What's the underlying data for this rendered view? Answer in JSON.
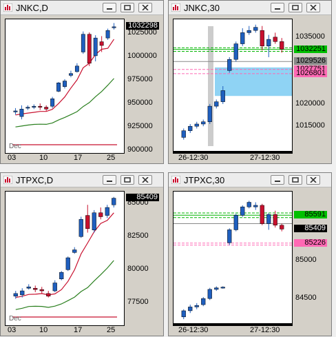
{
  "windows": [
    {
      "title": "JNKC,D",
      "y_ticks": [
        "1025000",
        "1000000",
        "975000",
        "950000",
        "925000",
        "900000"
      ],
      "x_ticks": [
        "03",
        "10",
        "17",
        "25"
      ],
      "x_sublabel": "Dec",
      "price_tags": [
        "1032298"
      ],
      "chart_data": {
        "type": "candlestick",
        "symbol": "JNKC",
        "timeframe": "D",
        "ylim": [
          897000,
          1040000
        ],
        "candles": [
          {
            "o": 941000,
            "h": 945000,
            "l": 938000,
            "c": 942000
          },
          {
            "o": 936000,
            "h": 948000,
            "l": 933000,
            "c": 944000
          },
          {
            "o": 945000,
            "h": 948000,
            "l": 943000,
            "c": 946000
          },
          {
            "o": 946000,
            "h": 949000,
            "l": 944000,
            "c": 947000
          },
          {
            "o": 947000,
            "h": 950000,
            "l": 943000,
            "c": 946000
          },
          {
            "o": 946000,
            "h": 948000,
            "l": 942000,
            "c": 944000
          },
          {
            "o": 947000,
            "h": 957000,
            "l": 945000,
            "c": 955000
          },
          {
            "o": 963000,
            "h": 973000,
            "l": 962000,
            "c": 972000
          },
          {
            "o": 968000,
            "h": 976000,
            "l": 966000,
            "c": 974000
          },
          {
            "o": 980000,
            "h": 985000,
            "l": 978000,
            "c": 982000
          },
          {
            "o": 984000,
            "h": 993000,
            "l": 983000,
            "c": 990000
          },
          {
            "o": 1005000,
            "h": 1027000,
            "l": 1003000,
            "c": 1024000
          },
          {
            "o": 1024000,
            "h": 1026000,
            "l": 990000,
            "c": 993000
          },
          {
            "o": 1001000,
            "h": 1023000,
            "l": 995000,
            "c": 1020000
          },
          {
            "o": 1016000,
            "h": 1022000,
            "l": 1005000,
            "c": 1012000
          },
          {
            "o": 1020000,
            "h": 1030000,
            "l": 1018000,
            "c": 1028000
          },
          {
            "o": 1031000,
            "h": 1036000,
            "l": 1029000,
            "c": 1032000
          }
        ]
      }
    },
    {
      "title": "JNKC,30",
      "y_ticks": [
        "1035000",
        "1020000",
        "1015000"
      ],
      "x_ticks": [
        "26-12:30",
        "27-12:30"
      ],
      "price_tags": [
        "1032251",
        "1029526",
        "1027751",
        "1026801"
      ],
      "chart_data": {
        "type": "candlestick",
        "symbol": "JNKC",
        "timeframe": "30",
        "ylim": [
          1009000,
          1039000
        ],
        "candles": [
          {
            "o": 1012500,
            "h": 1014500,
            "l": 1012000,
            "c": 1014000
          },
          {
            "o": 1014000,
            "h": 1015500,
            "l": 1013500,
            "c": 1015000
          },
          {
            "o": 1015000,
            "h": 1016000,
            "l": 1014500,
            "c": 1015500
          },
          {
            "o": 1015500,
            "h": 1016500,
            "l": 1015000,
            "c": 1016000
          },
          {
            "o": 1016000,
            "h": 1020000,
            "l": 1015500,
            "c": 1019500
          },
          {
            "o": 1019500,
            "h": 1021000,
            "l": 1019000,
            "c": 1020500
          },
          {
            "o": 1020500,
            "h": 1024000,
            "l": 1020000,
            "c": 1023000
          },
          {
            "o": 1027500,
            "h": 1030500,
            "l": 1027000,
            "c": 1030000
          },
          {
            "o": 1030000,
            "h": 1034000,
            "l": 1029500,
            "c": 1033500
          },
          {
            "o": 1033500,
            "h": 1037000,
            "l": 1033000,
            "c": 1036000
          },
          {
            "o": 1036000,
            "h": 1037500,
            "l": 1035500,
            "c": 1036500
          },
          {
            "o": 1036500,
            "h": 1037800,
            "l": 1036000,
            "c": 1037200
          },
          {
            "o": 1036500,
            "h": 1037500,
            "l": 1032000,
            "c": 1033000
          },
          {
            "o": 1033000,
            "h": 1035500,
            "l": 1030500,
            "c": 1034500
          },
          {
            "o": 1035000,
            "h": 1036000,
            "l": 1033500,
            "c": 1034000
          },
          {
            "o": 1034000,
            "h": 1034800,
            "l": 1031500,
            "c": 1032300
          }
        ]
      }
    },
    {
      "title": "JTPXC,D",
      "y_ticks": [
        "85000",
        "82500",
        "80000",
        "77500"
      ],
      "x_ticks": [
        "03",
        "10",
        "17",
        "25"
      ],
      "x_sublabel": "Dec",
      "price_tags": [
        "85409"
      ],
      "chart_data": {
        "type": "candlestick",
        "symbol": "JTPXC",
        "timeframe": "D",
        "ylim": [
          75800,
          85900
        ],
        "candles": [
          {
            "o": 78000,
            "h": 78400,
            "l": 77800,
            "c": 78200
          },
          {
            "o": 78100,
            "h": 78600,
            "l": 77900,
            "c": 78400
          },
          {
            "o": 78600,
            "h": 78900,
            "l": 78500,
            "c": 78700
          },
          {
            "o": 78600,
            "h": 78800,
            "l": 78300,
            "c": 78500
          },
          {
            "o": 78500,
            "h": 78700,
            "l": 78200,
            "c": 78400
          },
          {
            "o": 78200,
            "h": 78400,
            "l": 77900,
            "c": 78000
          },
          {
            "o": 78400,
            "h": 79200,
            "l": 78300,
            "c": 79000
          },
          {
            "o": 79300,
            "h": 79900,
            "l": 79200,
            "c": 79800
          },
          {
            "o": 80000,
            "h": 81000,
            "l": 79900,
            "c": 80900
          },
          {
            "o": 81300,
            "h": 81700,
            "l": 81200,
            "c": 81500
          },
          {
            "o": 82500,
            "h": 84000,
            "l": 82400,
            "c": 83800
          },
          {
            "o": 84100,
            "h": 84900,
            "l": 82800,
            "c": 83100
          },
          {
            "o": 83000,
            "h": 84500,
            "l": 82800,
            "c": 84300
          },
          {
            "o": 84300,
            "h": 84700,
            "l": 83800,
            "c": 84000
          },
          {
            "o": 84100,
            "h": 84900,
            "l": 83900,
            "c": 84700
          },
          {
            "o": 84900,
            "h": 85500,
            "l": 84700,
            "c": 85400
          }
        ]
      }
    },
    {
      "title": "JTPXC,30",
      "y_ticks": [
        "85000",
        "84500"
      ],
      "x_ticks": [
        "26-12:30",
        "27-12:30"
      ],
      "price_tags": [
        "85591",
        "85409",
        "85226"
      ],
      "chart_data": {
        "type": "candlestick",
        "symbol": "JTPXC",
        "timeframe": "30",
        "ylim": [
          84150,
          85900
        ],
        "candles": [
          {
            "o": 84260,
            "h": 84360,
            "l": 84230,
            "c": 84340
          },
          {
            "o": 84340,
            "h": 84420,
            "l": 84310,
            "c": 84390
          },
          {
            "o": 84390,
            "h": 84440,
            "l": 84360,
            "c": 84410
          },
          {
            "o": 84420,
            "h": 84520,
            "l": 84400,
            "c": 84500
          },
          {
            "o": 84500,
            "h": 84640,
            "l": 84480,
            "c": 84620
          },
          {
            "o": 84620,
            "h": 84660,
            "l": 84600,
            "c": 84640
          },
          {
            "o": 84640,
            "h": 84660,
            "l": 84630,
            "c": 84650
          },
          {
            "o": 85230,
            "h": 85420,
            "l": 85200,
            "c": 85400
          },
          {
            "o": 85400,
            "h": 85610,
            "l": 85380,
            "c": 85590
          },
          {
            "o": 85590,
            "h": 85720,
            "l": 85570,
            "c": 85700
          },
          {
            "o": 85700,
            "h": 85780,
            "l": 85680,
            "c": 85760
          },
          {
            "o": 85700,
            "h": 85760,
            "l": 85660,
            "c": 85720
          },
          {
            "o": 85720,
            "h": 85740,
            "l": 85460,
            "c": 85480
          },
          {
            "o": 85480,
            "h": 85620,
            "l": 85400,
            "c": 85600
          },
          {
            "o": 85600,
            "h": 85650,
            "l": 85430,
            "c": 85460
          },
          {
            "o": 85460,
            "h": 85480,
            "l": 85380,
            "c": 85409
          }
        ]
      }
    }
  ],
  "colors": {
    "bull": "#1f5fbf",
    "bear": "#c8102e",
    "ma_fast": "#c8102e",
    "ma_slow": "#2a7f1e",
    "level_green": "#00b400",
    "level_pink": "#ff69b4",
    "zone": "#8fd3f4"
  }
}
